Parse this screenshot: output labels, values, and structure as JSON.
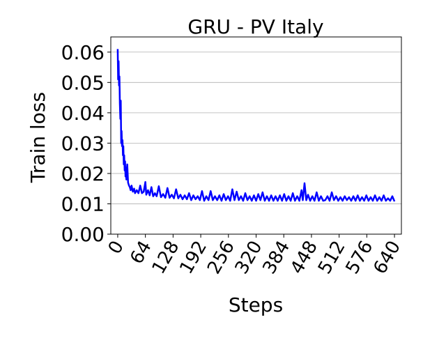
{
  "chart_data": {
    "type": "line",
    "title": "GRU - PV Italy",
    "xlabel": "Steps",
    "ylabel": "Train loss",
    "xlim": [
      -16,
      656
    ],
    "ylim": [
      0,
      0.065
    ],
    "x_ticks": [
      0,
      64,
      128,
      192,
      256,
      320,
      384,
      448,
      512,
      576,
      640
    ],
    "x_tick_labels": [
      "0",
      "64",
      "128",
      "192",
      "256",
      "320",
      "384",
      "448",
      "512",
      "576",
      "640"
    ],
    "y_ticks": [
      0.0,
      0.01,
      0.02,
      0.03,
      0.04,
      0.05,
      0.06
    ],
    "y_tick_labels": [
      "0.00",
      "0.01",
      "0.02",
      "0.03",
      "0.04",
      "0.05",
      "0.06"
    ],
    "grid": "horizontal",
    "legend": "none",
    "series": [
      {
        "color": "#0000ff",
        "x": [
          0,
          1,
          2,
          3,
          4,
          5,
          6,
          7,
          8,
          9,
          10,
          11,
          12,
          13,
          14,
          15,
          16,
          17,
          18,
          19,
          20,
          22,
          24,
          26,
          28,
          30,
          32,
          35,
          38,
          40,
          44,
          48,
          52,
          56,
          60,
          64,
          66,
          70,
          74,
          78,
          82,
          86,
          90,
          95,
          100,
          105,
          110,
          115,
          120,
          125,
          130,
          135,
          140,
          145,
          150,
          155,
          160,
          165,
          170,
          175,
          180,
          185,
          190,
          195,
          200,
          205,
          210,
          215,
          220,
          225,
          230,
          235,
          240,
          245,
          250,
          255,
          260,
          265,
          270,
          275,
          280,
          285,
          290,
          295,
          300,
          305,
          310,
          315,
          320,
          325,
          330,
          335,
          340,
          345,
          350,
          355,
          360,
          365,
          370,
          375,
          380,
          385,
          390,
          395,
          400,
          405,
          410,
          415,
          420,
          425,
          428,
          432,
          436,
          440,
          445,
          450,
          455,
          460,
          465,
          470,
          475,
          480,
          485,
          490,
          495,
          500,
          505,
          510,
          515,
          520,
          525,
          530,
          535,
          540,
          545,
          550,
          555,
          560,
          565,
          570,
          575,
          580,
          585,
          590,
          595,
          600,
          605,
          610,
          615,
          620,
          625,
          630,
          635,
          640
        ],
        "y": [
          0.061,
          0.051,
          0.057,
          0.049,
          0.052,
          0.043,
          0.038,
          0.044,
          0.03,
          0.034,
          0.029,
          0.031,
          0.026,
          0.029,
          0.023,
          0.026,
          0.021,
          0.024,
          0.019,
          0.022,
          0.018,
          0.023,
          0.017,
          0.016,
          0.0155,
          0.0145,
          0.016,
          0.014,
          0.015,
          0.0135,
          0.0145,
          0.0135,
          0.016,
          0.0135,
          0.014,
          0.0172,
          0.013,
          0.0145,
          0.0128,
          0.0155,
          0.0125,
          0.0135,
          0.0125,
          0.0158,
          0.0122,
          0.0132,
          0.012,
          0.0152,
          0.012,
          0.013,
          0.0118,
          0.0148,
          0.0118,
          0.013,
          0.0115,
          0.0128,
          0.0115,
          0.0135,
          0.0112,
          0.0128,
          0.0115,
          0.0125,
          0.0112,
          0.0142,
          0.011,
          0.0125,
          0.0112,
          0.0142,
          0.0112,
          0.0125,
          0.0112,
          0.0128,
          0.011,
          0.0132,
          0.0112,
          0.0125,
          0.011,
          0.0148,
          0.0112,
          0.014,
          0.0112,
          0.0125,
          0.011,
          0.0135,
          0.0112,
          0.0125,
          0.011,
          0.0128,
          0.011,
          0.0132,
          0.0112,
          0.0138,
          0.011,
          0.0125,
          0.011,
          0.0128,
          0.011,
          0.0125,
          0.011,
          0.0128,
          0.011,
          0.0132,
          0.011,
          0.0125,
          0.011,
          0.0135,
          0.011,
          0.0125,
          0.011,
          0.0145,
          0.0112,
          0.0168,
          0.0112,
          0.013,
          0.011,
          0.0125,
          0.011,
          0.0138,
          0.011,
          0.0125,
          0.011,
          0.0112,
          0.0125,
          0.011,
          0.0138,
          0.0112,
          0.0125,
          0.011,
          0.0122,
          0.011,
          0.0125,
          0.0112,
          0.0122,
          0.011,
          0.0125,
          0.011,
          0.0128,
          0.011,
          0.0122,
          0.011,
          0.0128,
          0.011,
          0.0122,
          0.011,
          0.0128,
          0.011,
          0.0122,
          0.011,
          0.0128,
          0.011,
          0.0118,
          0.011,
          0.0125,
          0.0108
        ]
      }
    ]
  }
}
